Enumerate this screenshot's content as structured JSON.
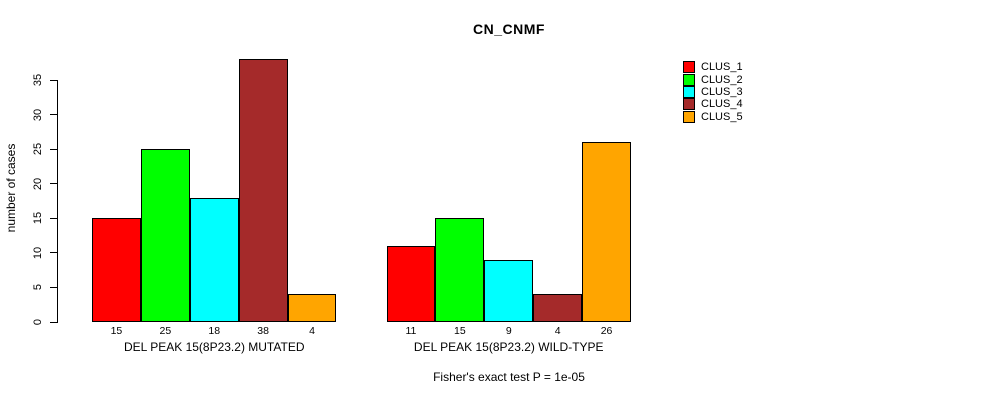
{
  "chart_data": {
    "type": "bar",
    "title": "CN_CNMF",
    "ylabel": "number of cases",
    "xlabel": "",
    "ylim": [
      0,
      35
    ],
    "yticks": [
      0,
      5,
      10,
      15,
      20,
      25,
      30,
      35
    ],
    "grid": false,
    "bar_border_color": "#000000",
    "background_color": "#ffffff",
    "legend_position": "right",
    "categories": [
      "DEL PEAK 15(8P23.2) MUTATED",
      "DEL PEAK 15(8P23.2) WILD-TYPE"
    ],
    "series": [
      {
        "name": "CLUS_1",
        "color": "#ff0000",
        "values": [
          15,
          11
        ]
      },
      {
        "name": "CLUS_2",
        "color": "#00ff00",
        "values": [
          25,
          15
        ]
      },
      {
        "name": "CLUS_3",
        "color": "#00ffff",
        "values": [
          18,
          9
        ]
      },
      {
        "name": "CLUS_4",
        "color": "#a52a2a",
        "values": [
          38,
          4
        ]
      },
      {
        "name": "CLUS_5",
        "color": "#ffa500",
        "values": [
          4,
          26
        ]
      }
    ],
    "bar_value_labels": {
      "DEL PEAK 15(8P23.2) MUTATED": [
        15,
        25,
        18,
        38,
        4
      ],
      "DEL PEAK 15(8P23.2) WILD-TYPE": [
        11,
        15,
        9,
        4,
        26
      ]
    },
    "footnote": "Fisher's exact test P = 1e-05"
  }
}
